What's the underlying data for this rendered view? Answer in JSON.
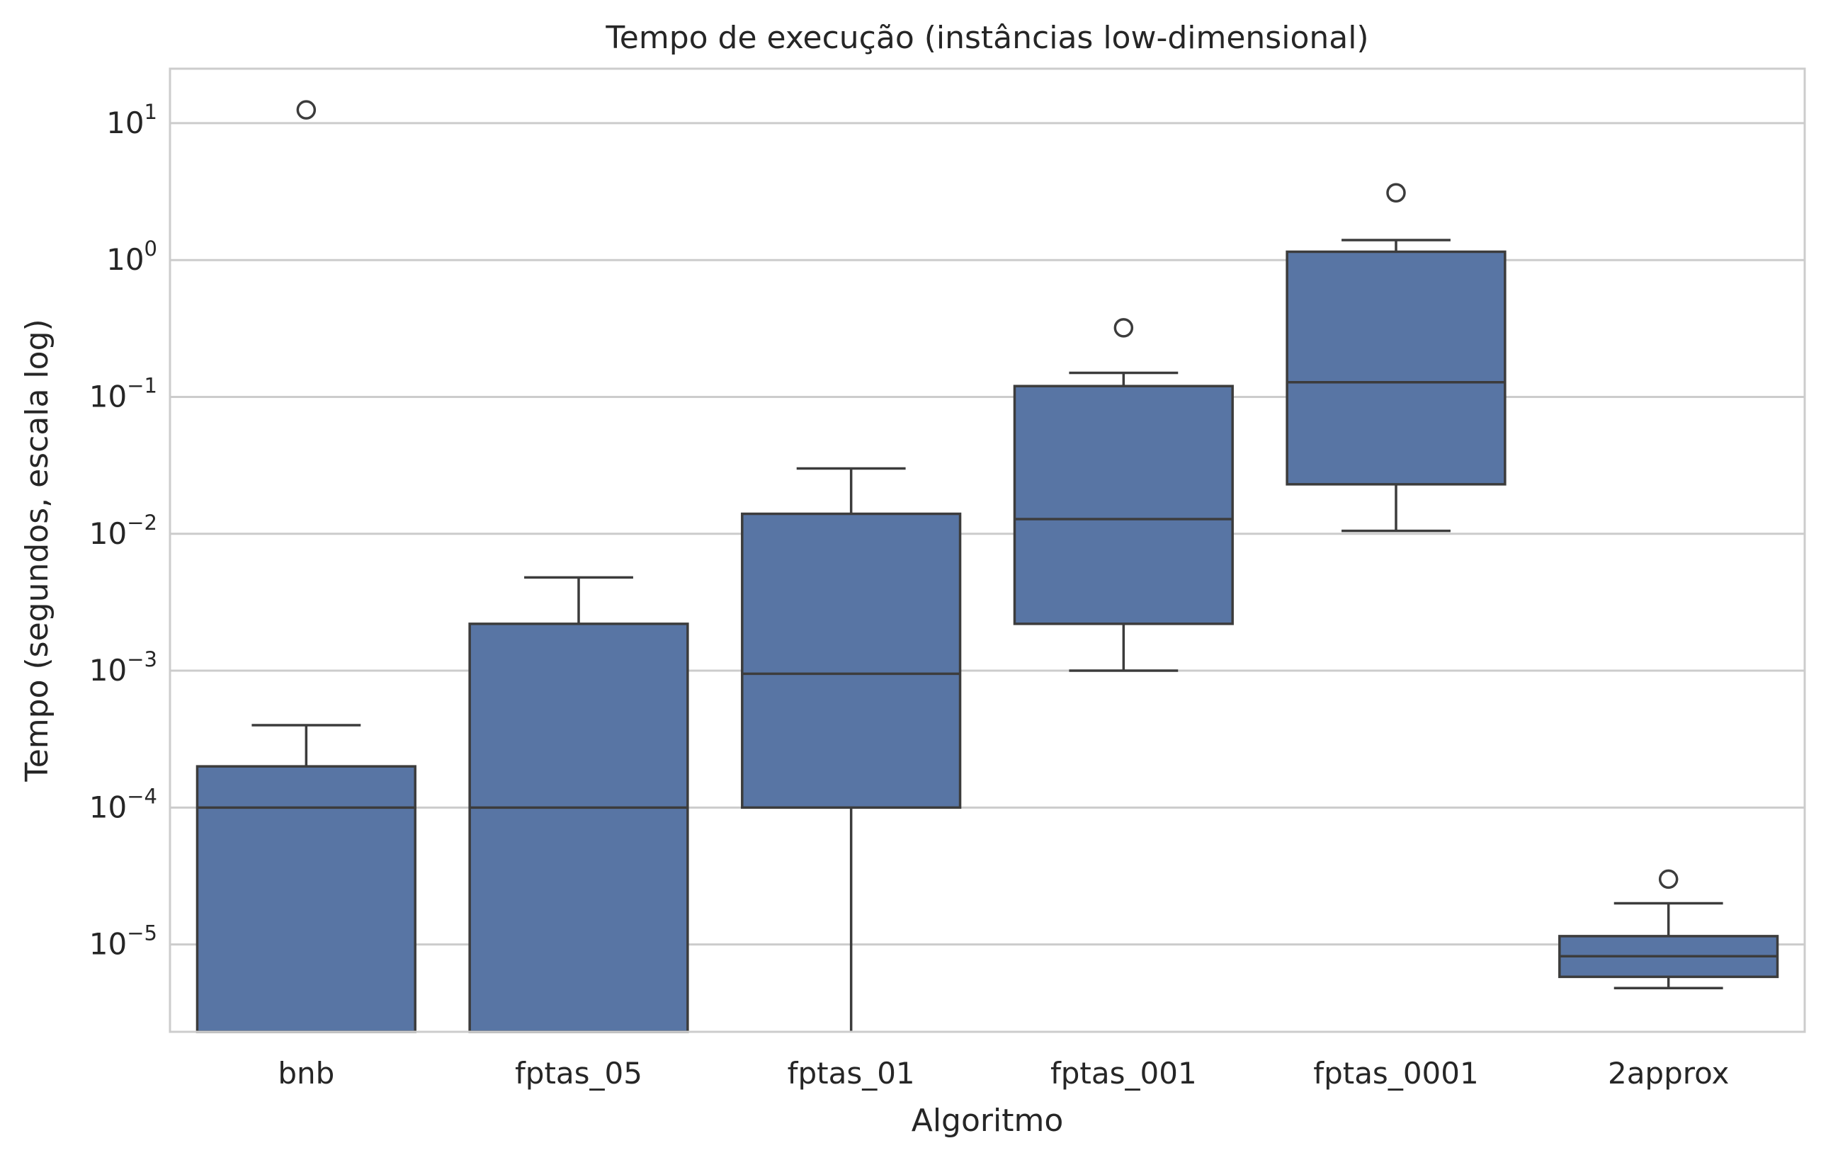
{
  "chart_data": {
    "type": "box",
    "title": "Tempo de execução (instâncias low-dimensional)",
    "xlabel": "Algoritmo",
    "ylabel": "Tempo (segundos, escala log)",
    "yscale": "log",
    "ylim": [
      2.3e-06,
      25
    ],
    "yticks": [
      {
        "value": 1e-05,
        "base": "10",
        "exp": "−5"
      },
      {
        "value": 0.0001,
        "base": "10",
        "exp": "−4"
      },
      {
        "value": 0.001,
        "base": "10",
        "exp": "−3"
      },
      {
        "value": 0.01,
        "base": "10",
        "exp": "−2"
      },
      {
        "value": 0.1,
        "base": "10",
        "exp": "−1"
      },
      {
        "value": 1,
        "base": "10",
        "exp": "0"
      },
      {
        "value": 10,
        "base": "10",
        "exp": "1"
      }
    ],
    "grid": true,
    "colors": {
      "box_fill": "#5875a4",
      "line": "#3c3c3c",
      "grid": "#cccccc",
      "frame": "#cccccc"
    },
    "categories": [
      "bnb",
      "fptas_05",
      "fptas_01",
      "fptas_001",
      "fptas_0001",
      "2approx"
    ],
    "boxes": [
      {
        "category": "bnb",
        "whisker_low": 2.3e-06,
        "q1": 2.3e-06,
        "median": 0.0001,
        "q3": 0.0002,
        "whisker_high": 0.0004,
        "outliers": [
          12.5
        ]
      },
      {
        "category": "fptas_05",
        "whisker_low": 2.3e-06,
        "q1": 2.3e-06,
        "median": 0.0001,
        "q3": 0.0022,
        "whisker_high": 0.0048,
        "outliers": []
      },
      {
        "category": "fptas_01",
        "whisker_low": 2.3e-06,
        "q1": 0.0001,
        "median": 0.00095,
        "q3": 0.014,
        "whisker_high": 0.03,
        "outliers": []
      },
      {
        "category": "fptas_001",
        "whisker_low": 0.001,
        "q1": 0.0022,
        "median": 0.0128,
        "q3": 0.12,
        "whisker_high": 0.15,
        "outliers": [
          0.32
        ]
      },
      {
        "category": "fptas_0001",
        "whisker_low": 0.0105,
        "q1": 0.023,
        "median": 0.128,
        "q3": 1.15,
        "whisker_high": 1.4,
        "outliers": [
          3.1
        ]
      },
      {
        "category": "2approx",
        "whisker_low": 4.8e-06,
        "q1": 5.8e-06,
        "median": 8.2e-06,
        "q3": 1.15e-05,
        "whisker_high": 2e-05,
        "outliers": [
          3e-05
        ]
      }
    ]
  }
}
